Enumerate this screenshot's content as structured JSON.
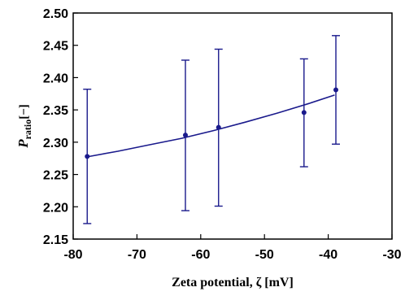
{
  "chart_data": {
    "type": "scatter",
    "xlabel": "Zeta potential, ζ [mV]",
    "ylabel_main": "P",
    "ylabel_sub": "ratio",
    "ylabel_unit": "[−]",
    "xlim": [
      -80,
      -30
    ],
    "ylim": [
      2.15,
      2.5
    ],
    "x_ticks": [
      "-80",
      "-70",
      "-60",
      "-50",
      "-40",
      "-30"
    ],
    "y_ticks": [
      "2.15",
      "2.20",
      "2.25",
      "2.30",
      "2.35",
      "2.40",
      "2.45",
      "2.50"
    ],
    "grid": false,
    "series": [
      {
        "points": [
          {
            "x": -77.8,
            "y": 2.278,
            "err_low": 2.174,
            "err_high": 2.382
          },
          {
            "x": -62.4,
            "y": 2.311,
            "err_low": 2.194,
            "err_high": 2.427
          },
          {
            "x": -57.2,
            "y": 2.323,
            "err_low": 2.201,
            "err_high": 2.444
          },
          {
            "x": -43.8,
            "y": 2.346,
            "err_low": 2.262,
            "err_high": 2.429
          },
          {
            "x": -38.8,
            "y": 2.381,
            "err_low": 2.297,
            "err_high": 2.465
          }
        ],
        "color": "#1a1a8c"
      }
    ],
    "fit_curve": {
      "x": [
        -78,
        -73,
        -68,
        -63,
        -58,
        -53,
        -48,
        -43,
        -39
      ],
      "y": [
        2.277,
        2.286,
        2.296,
        2.306,
        2.318,
        2.331,
        2.345,
        2.36,
        2.373
      ],
      "color": "#1a1a8c"
    }
  }
}
